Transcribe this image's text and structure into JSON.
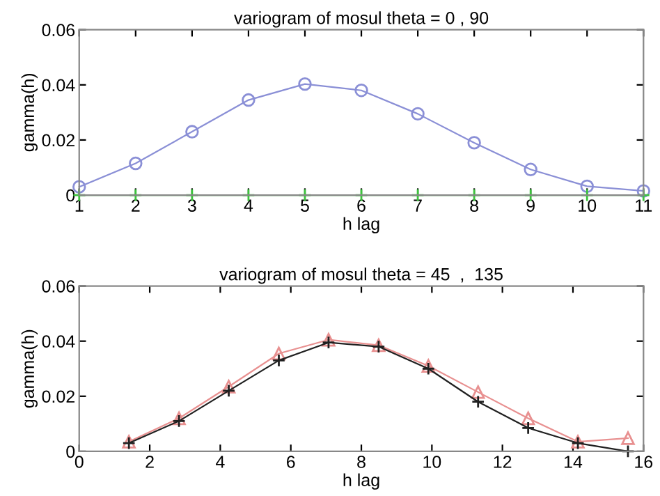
{
  "chart_data": [
    {
      "type": "line",
      "title": "variogram of mosul theta = 0 , 90",
      "xlabel": "h lag",
      "ylabel": "gamma(h)",
      "xlim": [
        1,
        11
      ],
      "ylim": [
        0,
        0.06
      ],
      "xticks": [
        1,
        2,
        3,
        4,
        5,
        6,
        7,
        8,
        9,
        10,
        11
      ],
      "yticks": [
        0,
        0.02,
        0.04,
        0.06
      ],
      "grid": false,
      "x": [
        1,
        2,
        3,
        4,
        5,
        6,
        7,
        8,
        9,
        10,
        11
      ],
      "series": [
        {
          "color": "#8a8fd6",
          "marker": "circle",
          "values": [
            0.003,
            0.0115,
            0.023,
            0.0345,
            0.0403,
            0.038,
            0.0295,
            0.019,
            0.0093,
            0.0032,
            0.0015
          ]
        },
        {
          "color": "#3cc43c",
          "marker": "cross",
          "values": [
            0,
            0,
            0,
            0,
            0,
            0,
            0,
            0,
            0,
            0,
            0
          ]
        }
      ]
    },
    {
      "type": "line",
      "title": "variogram of mosul theta = 45  ,  135",
      "xlabel": "h lag",
      "ylabel": "gamma(h)",
      "xlim": [
        0,
        16
      ],
      "ylim": [
        0,
        0.06
      ],
      "xticks": [
        0,
        2,
        4,
        6,
        8,
        10,
        12,
        14,
        16
      ],
      "yticks": [
        0,
        0.02,
        0.04,
        0.06
      ],
      "grid": false,
      "x": [
        1.41,
        2.83,
        4.24,
        5.66,
        7.07,
        8.49,
        9.9,
        11.31,
        12.73,
        14.14,
        15.56
      ],
      "series": [
        {
          "color": "#e89090",
          "marker": "triangle",
          "values": [
            0.0035,
            0.012,
            0.0235,
            0.0355,
            0.0405,
            0.0385,
            0.031,
            0.0215,
            0.012,
            0.0035,
            0.0048
          ]
        },
        {
          "color": "#202020",
          "marker": "cross",
          "values": [
            0.003,
            0.011,
            0.022,
            0.033,
            0.0395,
            0.038,
            0.03,
            0.018,
            0.0085,
            0.003,
            0.0
          ]
        }
      ]
    }
  ]
}
